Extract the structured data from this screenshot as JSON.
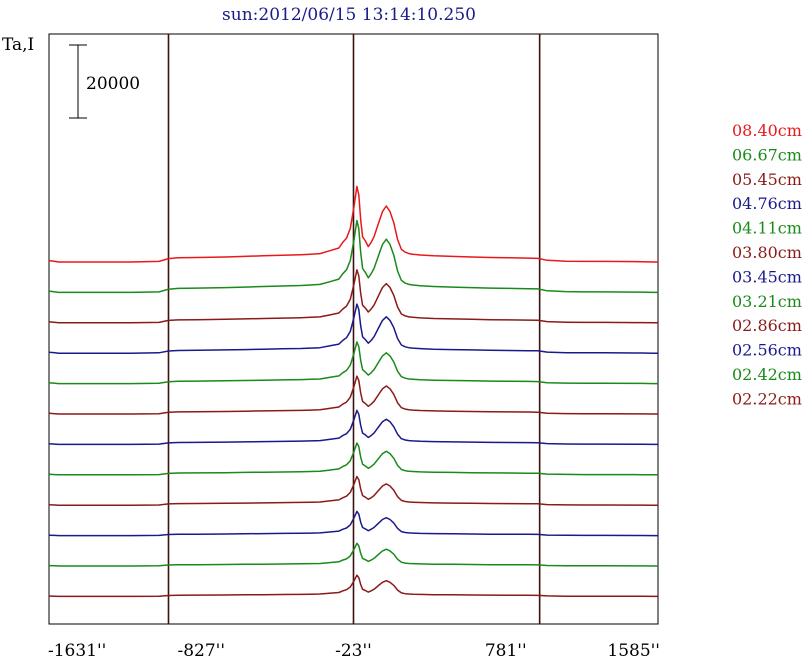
{
  "chart_data": {
    "type": "line",
    "title": "sun:2012/06/15 13:14:10.250",
    "ylabel": "Ta,I",
    "scale_bar_label": "20000",
    "xlim": [
      -1631,
      1585
    ],
    "x_ticks": [
      {
        "value": -1631,
        "label": "-1631''"
      },
      {
        "value": -827,
        "label": "-827''"
      },
      {
        "value": -23,
        "label": "-23''"
      },
      {
        "value": 781,
        "label": "781''"
      },
      {
        "value": 1585,
        "label": "1585''"
      }
    ],
    "vertical_lines": [
      -1000,
      -23,
      960
    ],
    "grid": false,
    "legend_placement": "right",
    "profile_x": [
      -1631,
      -1600,
      -1580,
      -1200,
      -1050,
      -1000,
      -950,
      -850,
      -700,
      -600,
      -500,
      -400,
      -300,
      -250,
      -200,
      -150,
      -100,
      -80,
      -60,
      -40,
      -20,
      -5,
      5,
      15,
      25,
      40,
      55,
      70,
      85,
      100,
      115,
      130,
      150,
      170,
      190,
      210,
      230,
      250,
      270,
      290,
      330,
      400,
      500,
      600,
      700,
      800,
      900,
      950,
      1000,
      1100,
      1200,
      1300,
      1500,
      1560,
      1585
    ],
    "profile_shape": [
      0.05,
      0.02,
      0,
      0,
      0.02,
      0.12,
      0.15,
      0.16,
      0.18,
      0.2,
      0.22,
      0.24,
      0.26,
      0.28,
      0.3,
      0.4,
      0.5,
      0.7,
      0.85,
      1.2,
      2.0,
      2.7,
      2.4,
      1.5,
      0.9,
      0.75,
      0.55,
      0.7,
      0.9,
      1.2,
      1.5,
      1.8,
      2.0,
      1.8,
      1.4,
      0.8,
      0.45,
      0.35,
      0.3,
      0.28,
      0.25,
      0.22,
      0.2,
      0.18,
      0.16,
      0.15,
      0.14,
      0.13,
      0.06,
      0.03,
      0.02,
      0.02,
      0.01,
      0.0,
      0.0
    ],
    "series": [
      {
        "name": "08.40cm",
        "color": "#e8191c",
        "baseline": 0.0,
        "amplitude": 1.0
      },
      {
        "name": "06.67cm",
        "color": "#1a8a1a",
        "baseline": 0.0,
        "amplitude": 0.95
      },
      {
        "name": "05.45cm",
        "color": "#8b1a1a",
        "baseline": 0.0,
        "amplitude": 0.7
      },
      {
        "name": "04.76cm",
        "color": "#1a1a8a",
        "baseline": 0.0,
        "amplitude": 0.65
      },
      {
        "name": "04.11cm",
        "color": "#1a8a1a",
        "baseline": 0.0,
        "amplitude": 0.55
      },
      {
        "name": "03.80cm",
        "color": "#8b1a1a",
        "baseline": 0.0,
        "amplitude": 0.5
      },
      {
        "name": "03.45cm",
        "color": "#1a1a8a",
        "baseline": 0.0,
        "amplitude": 0.45
      },
      {
        "name": "03.21cm",
        "color": "#1a8a1a",
        "baseline": 0.0,
        "amplitude": 0.42
      },
      {
        "name": "02.86cm",
        "color": "#8b1a1a",
        "baseline": 0.0,
        "amplitude": 0.38
      },
      {
        "name": "02.56cm",
        "color": "#1a1a8a",
        "baseline": 0.0,
        "amplitude": 0.32
      },
      {
        "name": "02.42cm",
        "color": "#1a8a1a",
        "baseline": 0.0,
        "amplitude": 0.3
      },
      {
        "name": "02.22cm",
        "color": "#8b1a1a",
        "baseline": 0.0,
        "amplitude": 0.28
      }
    ]
  }
}
